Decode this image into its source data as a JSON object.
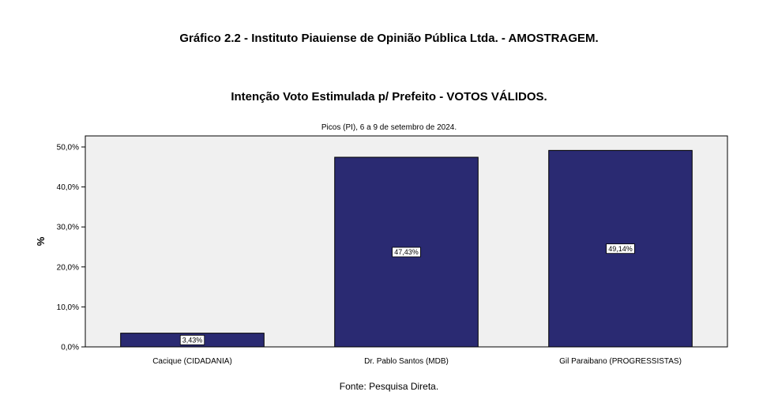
{
  "header": {
    "title": "Gráfico   2.2  -   Instituto Piauiense de Opinião Pública Ltda. - AMOSTRAGEM."
  },
  "footer": {
    "source": "Fonte: Pesquisa Direta."
  },
  "chart_data": {
    "type": "bar",
    "title": "Intenção Voto Estimulada p/ Prefeito  -  VOTOS VÁLIDOS.",
    "subtitle": "Picos (PI), 6 a 9 de setembro de 2024.",
    "xlabel": "",
    "ylabel": "%",
    "ylim": [
      0,
      50
    ],
    "yticks": [
      0,
      10,
      20,
      30,
      40,
      50
    ],
    "ytick_labels": [
      "0,0%",
      "10,0%",
      "20,0%",
      "30,0%",
      "40,0%",
      "50,0%"
    ],
    "categories": [
      "Cacique (CIDADANIA)",
      "Dr. Pablo Santos (MDB)",
      "Gil Paraibano (PROGRESSISTAS)"
    ],
    "values": [
      3.43,
      47.43,
      49.14
    ],
    "value_labels": [
      "3,43%",
      "47,43%",
      "49,14%"
    ],
    "bar_color": "#2a2a72",
    "plot_background": "#f0f0f0",
    "grid": false,
    "legend": "none"
  }
}
